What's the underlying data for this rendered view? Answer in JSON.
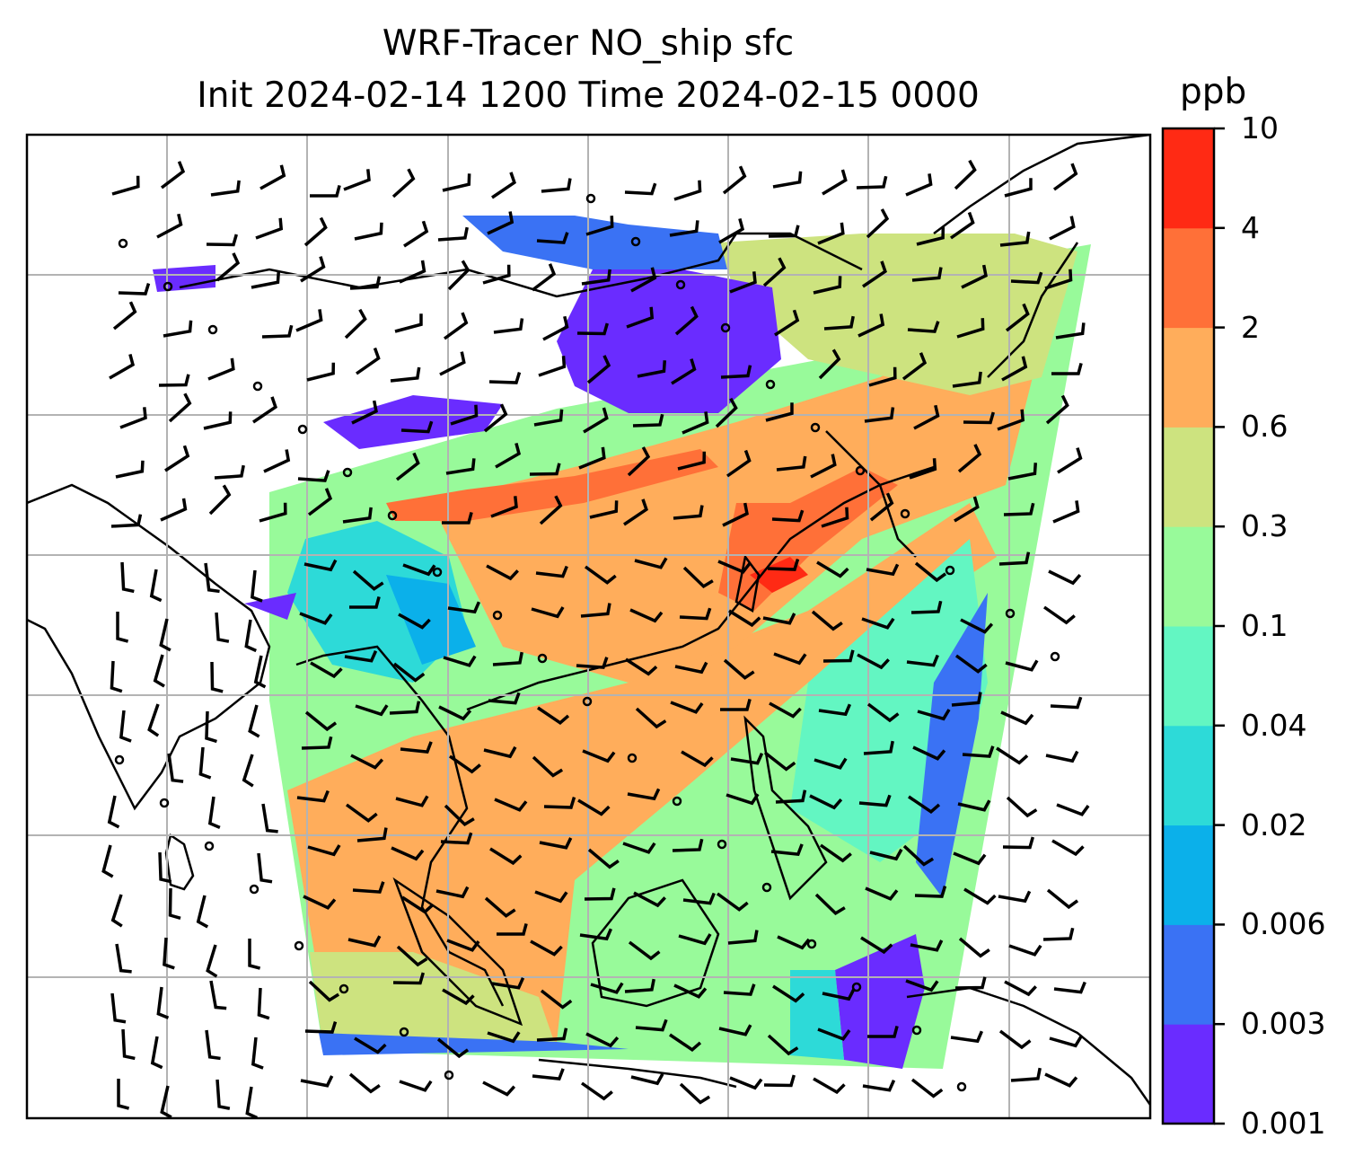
{
  "title": {
    "line1": "WRF-Tracer NO_ship sfc",
    "line2": "Init 2024-02-14 1200 Time 2024-02-15 0000"
  },
  "colorbar": {
    "unit": "ppb",
    "levels": [
      "0.001",
      "0.003",
      "0.006",
      "0.02",
      "0.04",
      "0.1",
      "0.3",
      "0.6",
      "2",
      "4",
      "10"
    ],
    "colors": [
      "#6a2cff",
      "#3a72f4",
      "#0bb0ea",
      "#2ddad8",
      "#63f6c2",
      "#98fa9a",
      "#cde37f",
      "#ffad5b",
      "#ff7038",
      "#ff2a14"
    ]
  },
  "map": {
    "content": "surface NO_ship tracer concentration with wind barbs over Southeast / East Asia",
    "no_data_color": "#ffffff",
    "gridlines": true,
    "coastlines": true,
    "wind_barbs": true
  }
}
